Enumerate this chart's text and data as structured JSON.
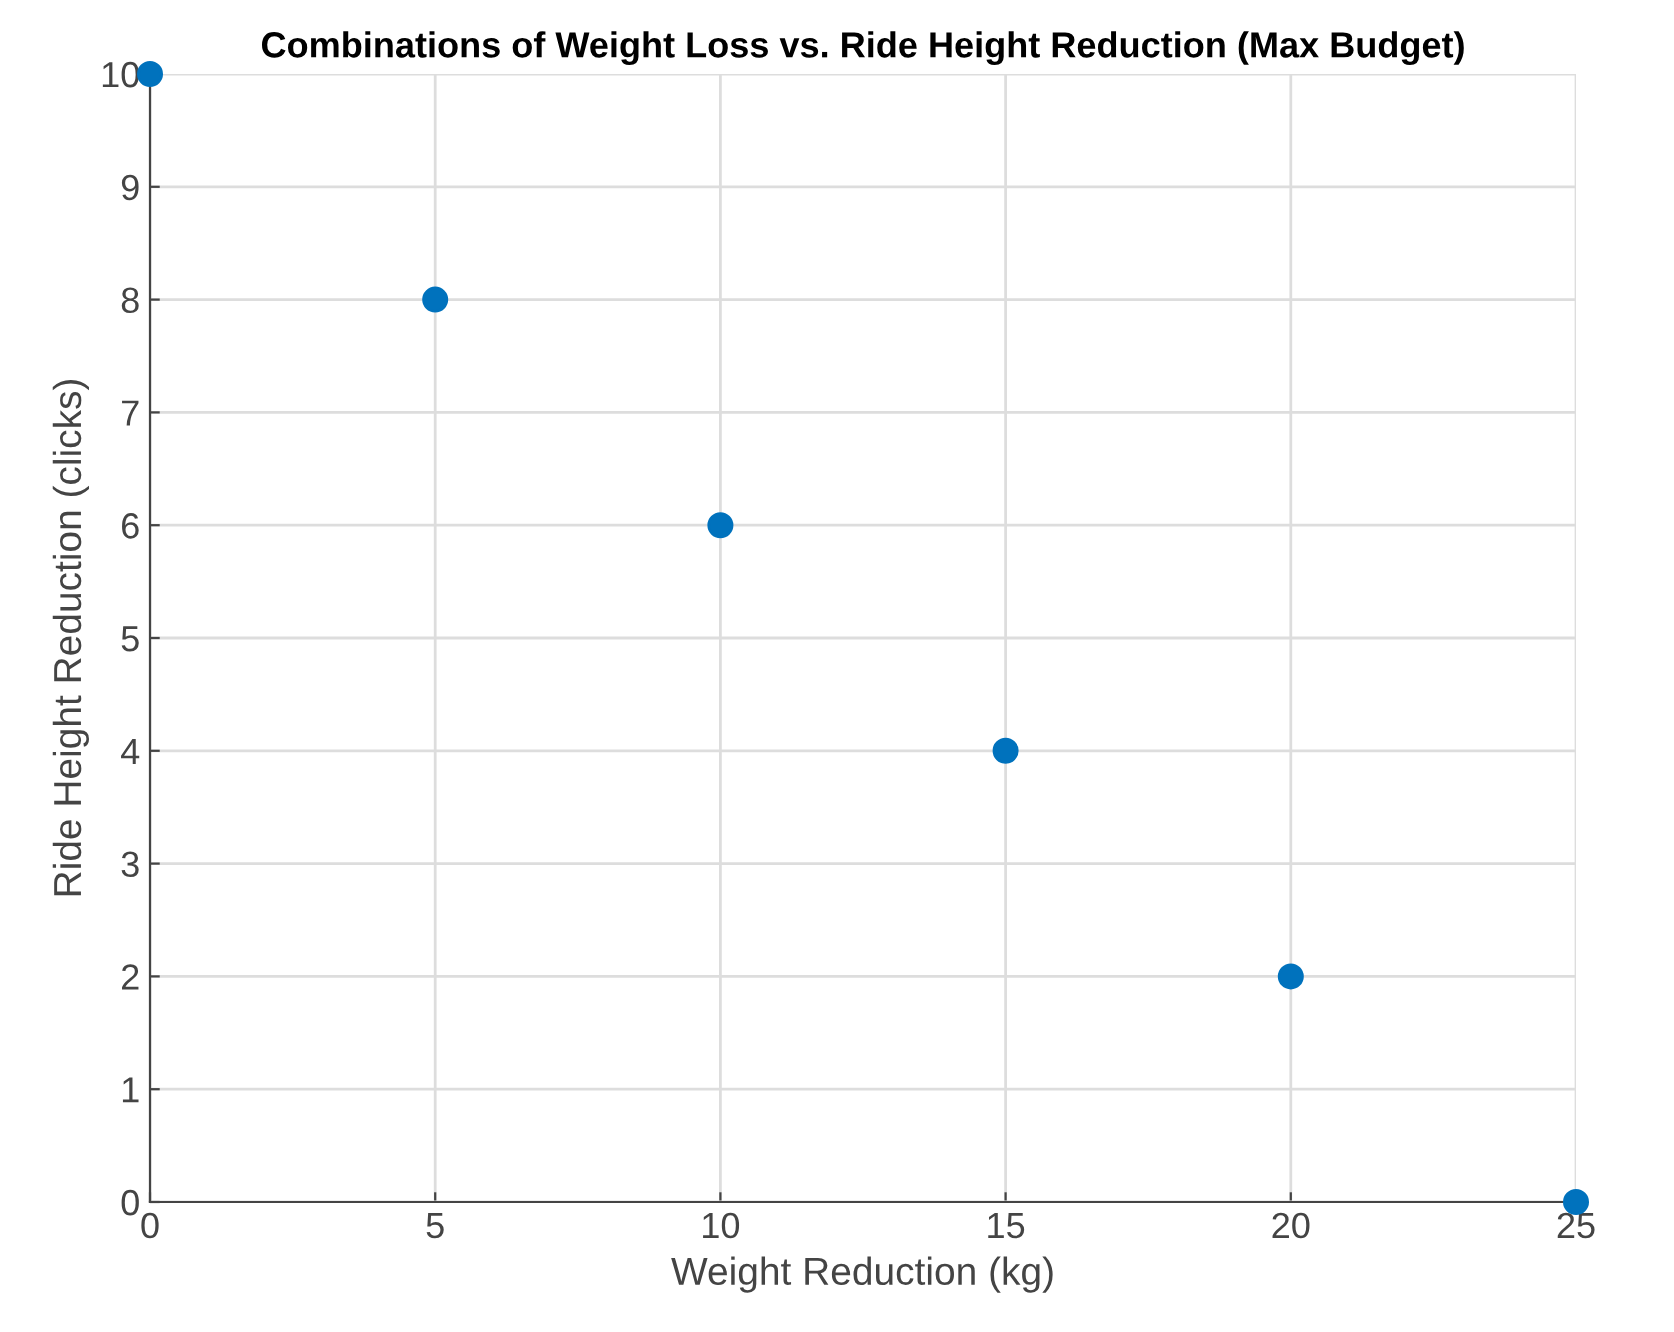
{
  "chart_data": {
    "type": "scatter",
    "title": "Combinations of Weight Loss vs. Ride Height Reduction (Max Budget)",
    "xlabel": "Weight Reduction (kg)",
    "ylabel": "Ride Height Reduction (clicks)",
    "x": [
      0,
      5,
      10,
      15,
      20,
      25
    ],
    "values": [
      10,
      8,
      6,
      4,
      2,
      0
    ],
    "color": "#0072bd",
    "marker": "circle",
    "xlim": [
      0,
      25
    ],
    "ylim": [
      0,
      10
    ],
    "xticks": [
      0,
      5,
      10,
      15,
      20,
      25
    ],
    "yticks": [
      0,
      1,
      2,
      3,
      4,
      5,
      6,
      7,
      8,
      9,
      10
    ],
    "grid": true
  }
}
